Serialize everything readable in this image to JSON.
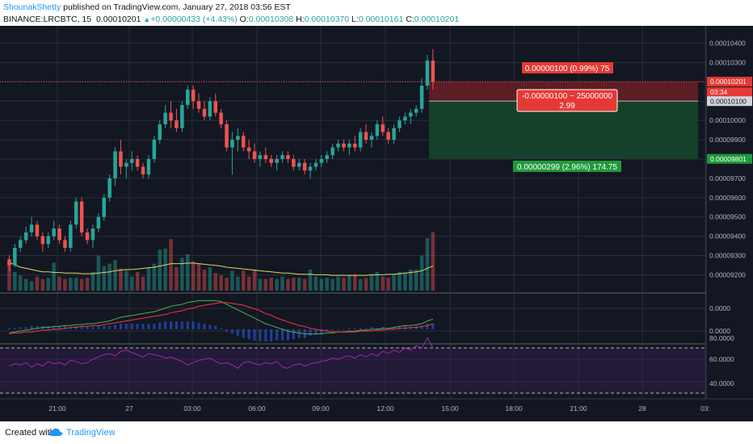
{
  "header": {
    "author": "ShounakShetty",
    "published": "published on TradingView.com, January 27, 2018 03:56 EST",
    "symbol": "BINANCE:LRCBTC, 15",
    "last": "0.00010201",
    "change_arrow": "▲",
    "change": "+0.00000433 (+4.43%)",
    "o_label": "O:",
    "o": "0.00010308",
    "h_label": "H:",
    "h": "0.00010370",
    "l_label": "L:",
    "l": "0.00010161",
    "c_label": "C:",
    "c": "0.00010201"
  },
  "price_axis": {
    "labels": [
      "0.00010400",
      "0.00010300",
      "0.00010100",
      "0.00010000",
      "0.00009900",
      "0.00009700",
      "0.00009600",
      "0.00009500",
      "0.00009400",
      "0.00009300",
      "0.00009200"
    ],
    "current_price": "0.00010201",
    "countdown": "03:34",
    "entry_price": "0.00010100",
    "stop_price": "0.00009801"
  },
  "macd_axis": {
    "labels": [
      "0.0000",
      "0.0000"
    ]
  },
  "rsi_axis": {
    "labels": [
      "80.0000",
      "60.0000",
      "40.0000"
    ]
  },
  "time_axis": {
    "labels": [
      "21:00",
      "27",
      "03:00",
      "06:00",
      "09:00",
      "12:00",
      "15:00",
      "18:00",
      "21:00",
      "28",
      "03:"
    ]
  },
  "position": {
    "target_label": "0.00000100 (0.99%) 75",
    "center_line1": "-0.00000100 ~ 25000000",
    "center_line2": "2.99",
    "stop_label": "0.00000299 (2.96%) 174.75"
  },
  "footer": {
    "created": "Created with",
    "brand": "TradingView"
  },
  "colors": {
    "background": "#131722",
    "grid": "#2a2e39",
    "up": "#26a69a",
    "down": "#ef5350",
    "target_zone": "#6b1f26",
    "stop_zone": "#16452a",
    "sma": "#d4d96a",
    "macd": "#4caf50",
    "signal": "#f23645",
    "rsi": "#9c27b0",
    "axis_text": "#b2b5be"
  },
  "chart_data": {
    "type": "candlestick",
    "price_range": [
      9.16e-05,
      0.0001044
    ],
    "candles": [
      [
        9.28,
        9.3,
        9.22,
        9.25
      ],
      [
        9.25,
        9.36,
        9.24,
        9.34
      ],
      [
        9.34,
        9.4,
        9.32,
        9.38
      ],
      [
        9.38,
        9.45,
        9.36,
        9.42
      ],
      [
        9.42,
        9.5,
        9.4,
        9.46
      ],
      [
        9.46,
        9.48,
        9.38,
        9.4
      ],
      [
        9.4,
        9.42,
        9.32,
        9.36
      ],
      [
        9.36,
        9.42,
        9.34,
        9.4
      ],
      [
        9.4,
        9.48,
        9.38,
        9.44
      ],
      [
        9.44,
        9.46,
        9.36,
        9.38
      ],
      [
        9.38,
        9.4,
        9.32,
        9.34
      ],
      [
        9.34,
        9.48,
        9.32,
        9.46
      ],
      [
        9.46,
        9.6,
        9.44,
        9.58
      ],
      [
        9.58,
        9.6,
        9.4,
        9.42
      ],
      [
        9.42,
        9.44,
        9.36,
        9.38
      ],
      [
        9.38,
        9.46,
        9.34,
        9.44
      ],
      [
        9.44,
        9.52,
        9.42,
        9.5
      ],
      [
        9.5,
        9.62,
        9.48,
        9.6
      ],
      [
        9.6,
        9.72,
        9.58,
        9.7
      ],
      [
        9.7,
        9.86,
        9.66,
        9.84
      ],
      [
        9.84,
        9.9,
        9.72,
        9.76
      ],
      [
        9.76,
        9.8,
        9.7,
        9.78
      ],
      [
        9.78,
        9.84,
        9.74,
        9.8
      ],
      [
        9.8,
        9.82,
        9.74,
        9.76
      ],
      [
        9.76,
        9.78,
        9.7,
        9.72
      ],
      [
        9.72,
        9.82,
        9.7,
        9.8
      ],
      [
        9.8,
        9.92,
        9.78,
        9.9
      ],
      [
        9.9,
        10.0,
        9.88,
        9.98
      ],
      [
        9.98,
        10.08,
        9.96,
        10.04
      ],
      [
        10.04,
        10.1,
        9.96,
        10.0
      ],
      [
        10.0,
        10.06,
        9.94,
        9.96
      ],
      [
        9.96,
        10.1,
        9.94,
        10.08
      ],
      [
        10.08,
        10.18,
        10.06,
        10.16
      ],
      [
        10.16,
        10.18,
        10.06,
        10.1
      ],
      [
        10.1,
        10.14,
        10.04,
        10.06
      ],
      [
        10.06,
        10.1,
        10.0,
        10.02
      ],
      [
        10.02,
        10.12,
        10.0,
        10.1
      ],
      [
        10.1,
        10.14,
        10.02,
        10.04
      ],
      [
        10.04,
        10.06,
        9.96,
        9.98
      ],
      [
        9.98,
        10.0,
        9.84,
        9.86
      ],
      [
        9.86,
        9.94,
        9.72,
        9.9
      ],
      [
        9.9,
        9.96,
        9.84,
        9.92
      ],
      [
        9.92,
        9.94,
        9.84,
        9.86
      ],
      [
        9.86,
        9.9,
        9.8,
        9.84
      ],
      [
        9.84,
        9.88,
        9.78,
        9.8
      ],
      [
        9.8,
        9.84,
        9.76,
        9.82
      ],
      [
        9.82,
        9.86,
        9.78,
        9.8
      ],
      [
        9.8,
        9.82,
        9.76,
        9.78
      ],
      [
        9.78,
        9.82,
        9.74,
        9.8
      ],
      [
        9.8,
        9.84,
        9.78,
        9.82
      ],
      [
        9.82,
        9.84,
        9.78,
        9.8
      ],
      [
        9.8,
        9.82,
        9.74,
        9.76
      ],
      [
        9.76,
        9.8,
        9.74,
        9.78
      ],
      [
        9.78,
        9.8,
        9.72,
        9.74
      ],
      [
        9.74,
        9.78,
        9.7,
        9.76
      ],
      [
        9.76,
        9.8,
        9.74,
        9.78
      ],
      [
        9.78,
        9.82,
        9.76,
        9.8
      ],
      [
        9.8,
        9.84,
        9.78,
        9.82
      ],
      [
        9.82,
        9.88,
        9.8,
        9.86
      ],
      [
        9.86,
        9.9,
        9.84,
        9.88
      ],
      [
        9.88,
        9.9,
        9.84,
        9.86
      ],
      [
        9.86,
        9.9,
        9.82,
        9.88
      ],
      [
        9.88,
        9.92,
        9.84,
        9.86
      ],
      [
        9.86,
        9.96,
        9.84,
        9.94
      ],
      [
        9.94,
        9.98,
        9.88,
        9.9
      ],
      [
        9.9,
        9.94,
        9.86,
        9.92
      ],
      [
        9.92,
        10.0,
        9.9,
        9.98
      ],
      [
        9.98,
        10.02,
        9.92,
        9.94
      ],
      [
        9.94,
        9.96,
        9.88,
        9.9
      ],
      [
        9.9,
        9.98,
        9.88,
        9.96
      ],
      [
        9.96,
        10.02,
        9.94,
        10.0
      ],
      [
        10.0,
        10.04,
        9.98,
        10.02
      ],
      [
        10.02,
        10.06,
        9.98,
        10.04
      ],
      [
        10.04,
        10.08,
        10.02,
        10.06
      ],
      [
        10.06,
        10.22,
        10.04,
        10.18
      ],
      [
        10.18,
        10.34,
        10.16,
        10.31
      ],
      [
        10.31,
        10.37,
        10.16,
        10.2
      ]
    ],
    "volume": [
      24,
      16,
      13,
      10,
      8,
      12,
      10,
      11,
      24,
      12,
      10,
      11,
      11,
      10,
      11,
      16,
      30,
      21,
      23,
      26,
      19,
      17,
      12,
      16,
      12,
      20,
      23,
      35,
      36,
      44,
      20,
      28,
      31,
      25,
      23,
      18,
      20,
      15,
      13,
      11,
      17,
      12,
      17,
      12,
      18,
      10,
      10,
      11,
      10,
      12,
      10,
      11,
      11,
      10,
      18,
      12,
      10,
      11,
      10,
      12,
      11,
      13,
      14,
      10,
      11,
      14,
      16,
      12,
      11,
      14,
      16,
      15,
      18,
      18,
      30,
      45,
      50
    ],
    "sma": [
      24,
      22,
      20,
      19,
      18,
      17,
      16,
      16,
      15.5,
      15.5,
      15,
      15,
      15,
      14.5,
      14.5,
      14.5,
      15,
      15.5,
      16,
      17,
      17.5,
      18,
      18,
      18.5,
      19,
      19.5,
      20,
      21,
      22,
      23,
      23,
      23,
      23.5,
      23.5,
      23,
      22.5,
      22,
      21.5,
      21,
      20,
      19.5,
      19,
      18.5,
      18,
      17.5,
      17,
      16.5,
      16,
      15.5,
      15,
      15,
      14.5,
      14,
      14,
      14,
      13.5,
      13.5,
      13.5,
      13,
      13,
      13,
      13,
      13,
      13,
      13,
      13.5,
      13.5,
      13.5,
      14,
      14,
      14.5,
      15,
      15.5,
      16,
      17,
      19,
      21
    ],
    "macd": {
      "macd_line": [
        -0.04,
        -0.03,
        -0.02,
        -0.01,
        0,
        0.01,
        0.02,
        0.02,
        0.03,
        0.03,
        0.04,
        0.04,
        0.05,
        0.05,
        0.06,
        0.06,
        0.07,
        0.08,
        0.09,
        0.11,
        0.13,
        0.14,
        0.15,
        0.16,
        0.17,
        0.18,
        0.19,
        0.21,
        0.23,
        0.25,
        0.26,
        0.27,
        0.29,
        0.3,
        0.31,
        0.31,
        0.31,
        0.31,
        0.3,
        0.27,
        0.24,
        0.21,
        0.18,
        0.15,
        0.12,
        0.09,
        0.06,
        0.04,
        0.02,
        0,
        -0.02,
        -0.03,
        -0.04,
        -0.05,
        -0.05,
        -0.05,
        -0.05,
        -0.04,
        -0.04,
        -0.03,
        -0.03,
        -0.02,
        -0.02,
        -0.01,
        -0.01,
        0,
        0,
        0.01,
        0.01,
        0.02,
        0.03,
        0.04,
        0.04,
        0.05,
        0.06,
        0.09,
        0.11
      ],
      "signal_line": [
        -0.05,
        -0.04,
        -0.04,
        -0.03,
        -0.03,
        -0.02,
        -0.01,
        -0.01,
        0,
        0,
        0.01,
        0.02,
        0.02,
        0.03,
        0.03,
        0.04,
        0.04,
        0.05,
        0.06,
        0.07,
        0.08,
        0.09,
        0.1,
        0.11,
        0.12,
        0.13,
        0.14,
        0.15,
        0.16,
        0.18,
        0.19,
        0.2,
        0.22,
        0.23,
        0.25,
        0.26,
        0.27,
        0.28,
        0.29,
        0.29,
        0.28,
        0.27,
        0.26,
        0.24,
        0.22,
        0.2,
        0.17,
        0.15,
        0.12,
        0.1,
        0.08,
        0.06,
        0.04,
        0.03,
        0.01,
        0,
        -0.01,
        -0.02,
        -0.03,
        -0.03,
        -0.03,
        -0.03,
        -0.03,
        -0.02,
        -0.02,
        -0.02,
        -0.01,
        -0.01,
        0,
        0,
        0.01,
        0.01,
        0.02,
        0.02,
        0.03,
        0.04,
        0.06
      ]
    },
    "rsi": [
      54,
      56,
      55,
      57,
      53,
      56,
      54,
      58,
      56,
      57,
      55,
      59,
      58,
      56,
      57,
      60,
      62,
      64,
      65,
      63,
      67,
      68,
      66,
      64,
      62,
      65,
      64,
      63,
      61,
      62,
      60,
      58,
      55,
      57,
      59,
      60,
      61,
      58,
      56,
      57,
      55,
      52,
      57,
      58,
      56,
      55,
      57,
      56,
      58,
      53,
      52,
      55,
      56,
      54,
      56,
      57,
      58,
      59,
      61,
      60,
      62,
      63,
      61,
      64,
      62,
      65,
      63,
      67,
      65,
      68,
      66,
      70,
      68,
      72,
      70,
      79,
      70
    ]
  }
}
